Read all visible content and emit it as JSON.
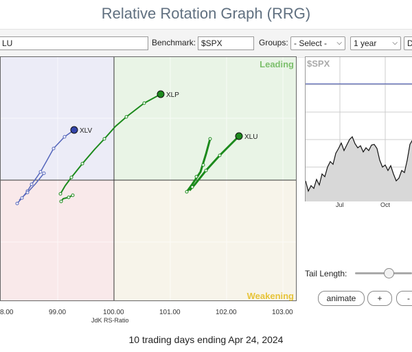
{
  "page_title": "Relative Rotation Graph (RRG)",
  "toolbar": {
    "symbols_value": "LU",
    "benchmark_label": "Benchmark:",
    "benchmark_value": "$SPX",
    "groups_label": "Groups:",
    "groups_value": "- Select -",
    "period_value": "1 year",
    "freq_value": "D"
  },
  "quadrants": {
    "leading": "Leading",
    "weakening": "Weakening",
    "colors": {
      "leading": "#e9f4e6",
      "weakening": "#f7f4ea",
      "lagging": "#f9e9ea",
      "improving": "#ececf7",
      "leading_text": "#7cbf6c",
      "weakening_text": "#e7c43a"
    }
  },
  "series": [
    {
      "name": "XLV",
      "color": "#5566bb"
    },
    {
      "name": "XLP",
      "color": "#1c8a1c"
    },
    {
      "name": "XLU",
      "color": "#1c8a1c"
    }
  ],
  "x_axis": {
    "title": "JdK RS-Ratio",
    "ticks": [
      "8.00",
      "99.00",
      "100.00",
      "101.00",
      "102.00",
      "103.00"
    ]
  },
  "benchmark_chart": {
    "symbol": "$SPX",
    "months": [
      "Jul",
      "Oct"
    ]
  },
  "controls": {
    "tail_label": "Tail Length:",
    "animate": "animate",
    "plus": "+",
    "minus": "-"
  },
  "footer": "10 trading days ending Apr 24, 2024"
}
